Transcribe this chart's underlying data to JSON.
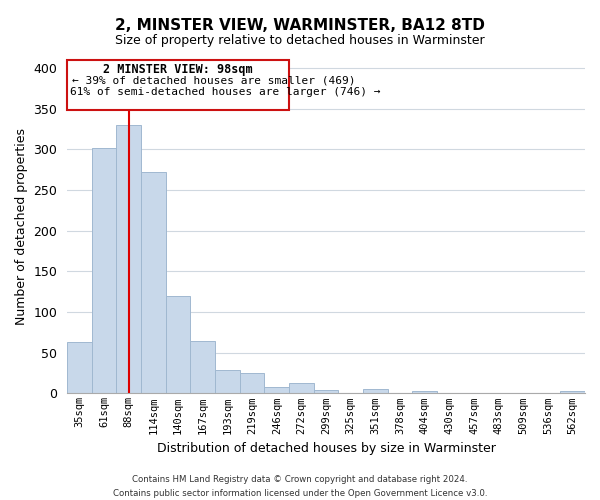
{
  "title": "2, MINSTER VIEW, WARMINSTER, BA12 8TD",
  "subtitle": "Size of property relative to detached houses in Warminster",
  "xlabel": "Distribution of detached houses by size in Warminster",
  "ylabel": "Number of detached properties",
  "bar_labels": [
    "35sqm",
    "61sqm",
    "88sqm",
    "114sqm",
    "140sqm",
    "167sqm",
    "193sqm",
    "219sqm",
    "246sqm",
    "272sqm",
    "299sqm",
    "325sqm",
    "351sqm",
    "378sqm",
    "404sqm",
    "430sqm",
    "457sqm",
    "483sqm",
    "509sqm",
    "536sqm",
    "562sqm"
  ],
  "bar_values": [
    63,
    302,
    330,
    272,
    120,
    64,
    29,
    25,
    8,
    13,
    4,
    0,
    5,
    0,
    3,
    0,
    0,
    0,
    0,
    0,
    3
  ],
  "bar_color": "#c8d8ea",
  "bar_edge_color": "#a0b8d0",
  "vline_x": 2,
  "vline_color": "#dd0000",
  "ylim": [
    0,
    410
  ],
  "yticks": [
    0,
    50,
    100,
    150,
    200,
    250,
    300,
    350,
    400
  ],
  "annotation_title": "2 MINSTER VIEW: 98sqm",
  "annotation_line1": "← 39% of detached houses are smaller (469)",
  "annotation_line2": "61% of semi-detached houses are larger (746) →",
  "footer_line1": "Contains HM Land Registry data © Crown copyright and database right 2024.",
  "footer_line2": "Contains public sector information licensed under the Open Government Licence v3.0.",
  "background_color": "#ffffff",
  "grid_color": "#d0d8e0"
}
